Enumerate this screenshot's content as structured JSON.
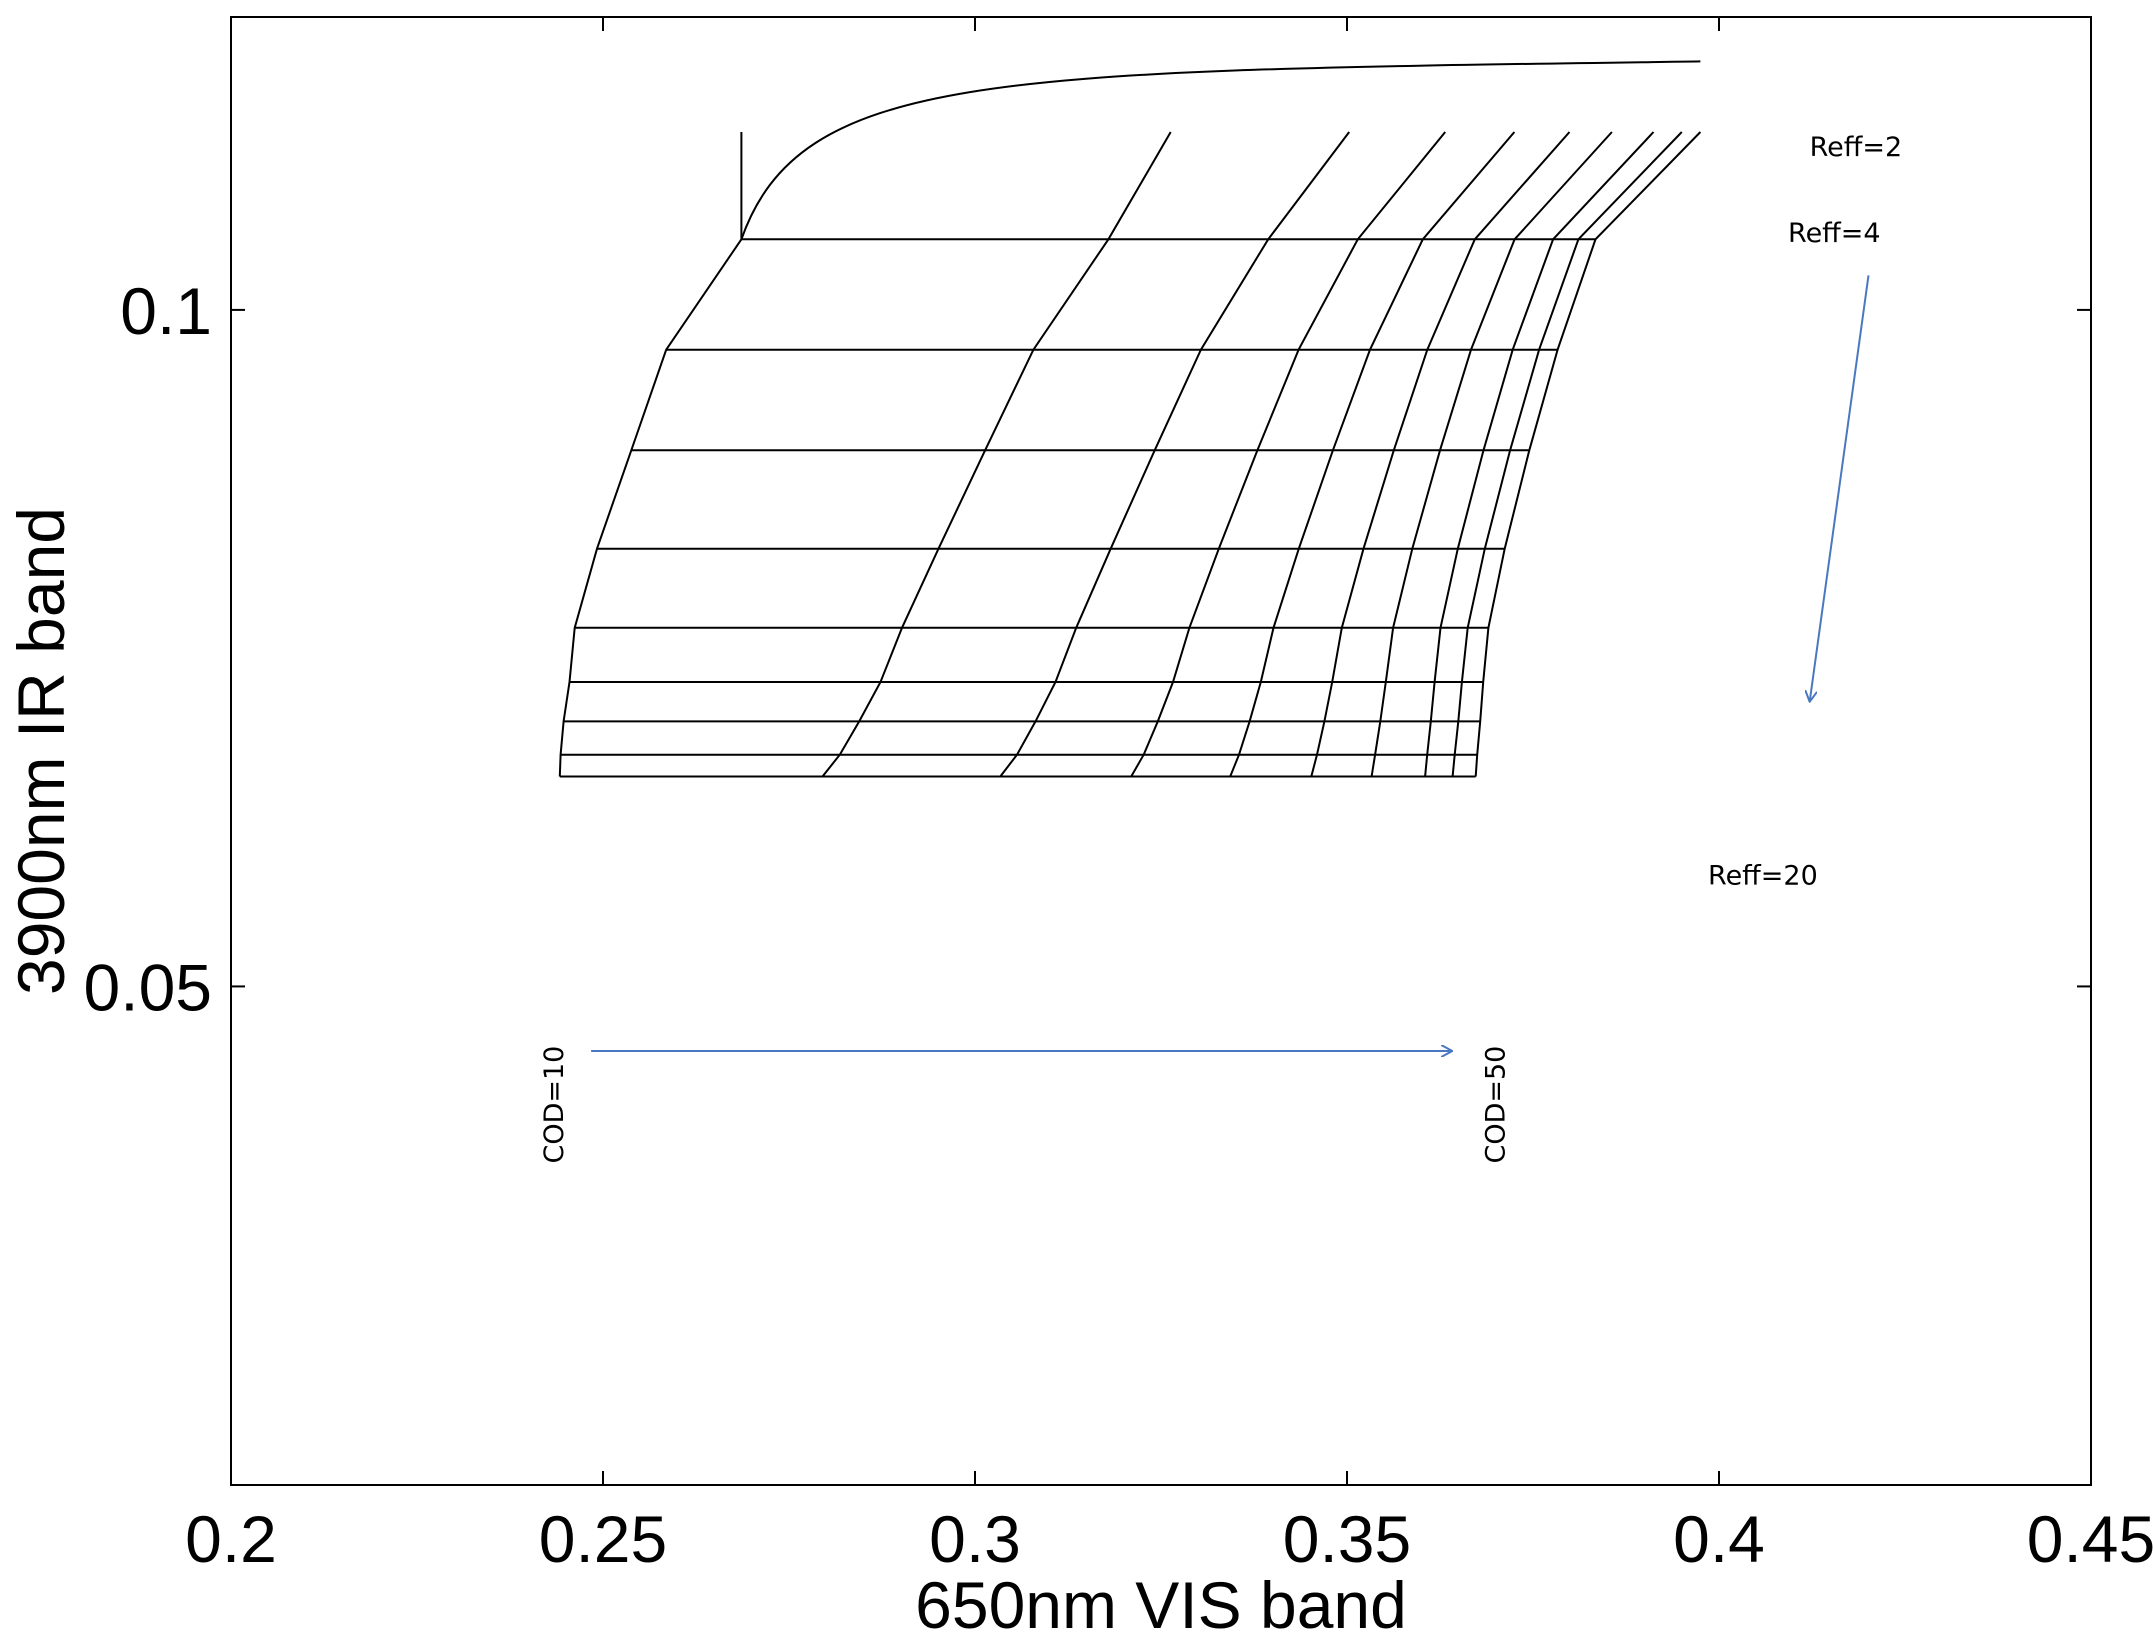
{
  "chart_data": {
    "type": "line",
    "title": "",
    "xlabel": "650nm VIS band",
    "ylabel": "3900nm IR  band",
    "xlim": [
      0.2,
      0.45
    ],
    "ylim": [
      0.03,
      0.135
    ],
    "yscale": "log",
    "grid": false,
    "xticks": [
      {
        "value": 0.2,
        "label": "0.2"
      },
      {
        "value": 0.25,
        "label": "0.25"
      },
      {
        "value": 0.3,
        "label": "0.3"
      },
      {
        "value": 0.35,
        "label": "0.35"
      },
      {
        "value": 0.4,
        "label": "0.4"
      },
      {
        "value": 0.45,
        "label": "0.45"
      }
    ],
    "yticks": [
      {
        "value": 0.05,
        "label": "0.05"
      },
      {
        "value": 0.1,
        "label": "0.1"
      }
    ],
    "lut_grid": {
      "line_color": "#000000",
      "reff_rows": [
        {
          "y": 0.12,
          "x_start": 0.2686,
          "x_end": 0.3975
        },
        {
          "y": 0.1075,
          "x_start": 0.2686,
          "x_end": 0.3834
        },
        {
          "y": 0.096,
          "x_start": 0.2585,
          "x_end": 0.3783
        },
        {
          "y": 0.0866,
          "x_start": 0.2538,
          "x_end": 0.3745
        },
        {
          "y": 0.0783,
          "x_start": 0.2492,
          "x_end": 0.3712
        },
        {
          "y": 0.0722,
          "x_start": 0.2462,
          "x_end": 0.369
        },
        {
          "y": 0.0683,
          "x_start": 0.2455,
          "x_end": 0.3683
        },
        {
          "y": 0.0656,
          "x_start": 0.2447,
          "x_end": 0.3679
        },
        {
          "y": 0.0634,
          "x_start": 0.2443,
          "x_end": 0.3675
        },
        {
          "y": 0.062,
          "x_start": 0.2442,
          "x_end": 0.3673
        }
      ],
      "cod_columns": [
        {
          "x_top": 0.2686,
          "x_bottom": 0.2442
        },
        {
          "x_top": 0.3263,
          "x_bottom": 0.2795
        },
        {
          "x_top": 0.3503,
          "x_bottom": 0.3034
        },
        {
          "x_top": 0.3632,
          "x_bottom": 0.321
        },
        {
          "x_top": 0.3725,
          "x_bottom": 0.3343
        },
        {
          "x_top": 0.3799,
          "x_bottom": 0.3452
        },
        {
          "x_top": 0.3856,
          "x_bottom": 0.3533
        },
        {
          "x_top": 0.3912,
          "x_bottom": 0.3605
        },
        {
          "x_top": 0.395,
          "x_bottom": 0.3642
        },
        {
          "x_top": 0.3975,
          "x_bottom": 0.3673
        }
      ]
    },
    "annotations": [
      {
        "text": "Reff=2",
        "x": 0.4184,
        "y": 0.1171,
        "rotation": 0
      },
      {
        "text": "Reff=4",
        "x": 0.4155,
        "y": 0.1072,
        "rotation": 0
      },
      {
        "text": "Reff=20",
        "x": 0.4059,
        "y": 0.0555,
        "rotation": 0
      },
      {
        "text": "COD=10",
        "x": 0.2446,
        "y": 0.0443,
        "rotation": -90
      },
      {
        "text": "COD=50",
        "x": 0.3712,
        "y": 0.0443,
        "rotation": -90
      }
    ],
    "arrows": [
      {
        "name": "cod-arrow",
        "from": [
          0.2484,
          0.0468
        ],
        "to": [
          0.364,
          0.0468
        ],
        "color": "#4a78c0"
      },
      {
        "name": "reff-arrow",
        "from": [
          0.4201,
          0.1036
        ],
        "to": [
          0.4122,
          0.067
        ],
        "color": "#4a78c0"
      }
    ]
  }
}
